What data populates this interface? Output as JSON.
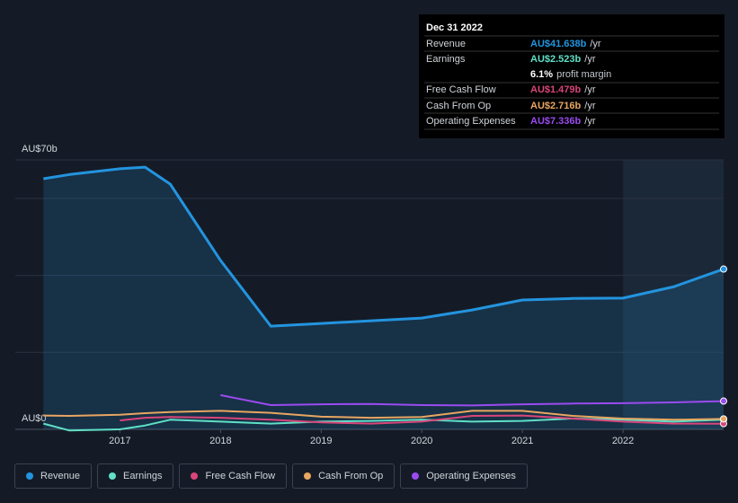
{
  "chart_data": {
    "type": "line",
    "x": [
      2016.24,
      2016.5,
      2017.0,
      2017.25,
      2017.5,
      2018.0,
      2018.5,
      2019.0,
      2019.5,
      2020.0,
      2020.5,
      2021.0,
      2021.5,
      2022.0,
      2022.5,
      2023.0
    ],
    "xlim": [
      2015.96,
      2023.0
    ],
    "xticks": [
      2017,
      2018,
      2019,
      2020,
      2021,
      2022
    ],
    "ylim": [
      0,
      70
    ],
    "yticks": [
      {
        "value": 0,
        "label": "AU$0"
      },
      {
        "value": 70,
        "label": "AU$70b"
      }
    ],
    "ygrid": [
      20,
      40,
      60
    ],
    "highlight_start": 2022.0,
    "series": [
      {
        "name": "Revenue",
        "color": "#2394df",
        "area": true,
        "values": [
          65.1,
          66.2,
          67.7,
          68.1,
          63.7,
          43.9,
          26.8,
          27.5,
          28.2,
          28.9,
          31.0,
          33.6,
          34.0,
          34.1,
          37.0,
          41.638
        ]
      },
      {
        "name": "Earnings",
        "color": "#5fe0c7",
        "values": [
          1.5,
          -0.3,
          0.0,
          1.0,
          2.5,
          2.0,
          1.5,
          2.0,
          2.2,
          2.5,
          2.0,
          2.2,
          2.8,
          2.5,
          2.0,
          2.523
        ]
      },
      {
        "name": "Free Cash Flow",
        "color": "#d9457a",
        "values": [
          null,
          null,
          2.3,
          3.0,
          3.2,
          3.0,
          2.5,
          1.8,
          1.5,
          2.0,
          3.5,
          3.6,
          2.8,
          2.0,
          1.5,
          1.479
        ]
      },
      {
        "name": "Cash From Op",
        "color": "#e8a661",
        "values": [
          3.6,
          3.5,
          3.8,
          4.2,
          4.5,
          4.8,
          4.3,
          3.3,
          3.0,
          3.2,
          4.8,
          4.8,
          3.5,
          2.8,
          2.5,
          2.716
        ]
      },
      {
        "name": "Operating Expenses",
        "color": "#9a4bf0",
        "values": [
          null,
          null,
          null,
          null,
          null,
          8.9,
          6.3,
          6.5,
          6.6,
          6.3,
          6.2,
          6.5,
          6.7,
          6.8,
          7.0,
          7.336
        ]
      }
    ],
    "tooltip": {
      "date": "Dec 31 2022",
      "unit": "/yr",
      "value_labels": [
        "AU$41.638b",
        "AU$2.523b",
        "AU$1.479b",
        "AU$2.716b",
        "AU$7.336b"
      ],
      "margin": "6.1%",
      "margin_text": "profit margin"
    }
  }
}
